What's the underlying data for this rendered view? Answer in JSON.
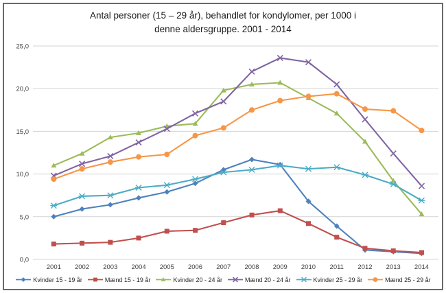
{
  "chart_data": {
    "type": "line",
    "title": "Antal personer (15 – 29 år), behandlet for kondylomer, per 1000 i denne aldersgruppe. 2001 - 2014",
    "title_lines": [
      "Antal personer (15 – 29 år), behandlet for kondylomer, per 1000 i",
      "denne aldersgruppe. 2001 - 2014"
    ],
    "xlabel": "",
    "ylabel": "",
    "x": [
      "2001",
      "2002",
      "2003",
      "2004",
      "2005",
      "2006",
      "2007",
      "2008",
      "2009",
      "2010",
      "2011",
      "2012",
      "2013",
      "2014"
    ],
    "y_ticks": [
      "0,0",
      "5,0",
      "10,0",
      "15,0",
      "20,0",
      "25,0"
    ],
    "ylim": [
      0,
      25
    ],
    "grid": true,
    "legend_position": "bottom",
    "series": [
      {
        "name": "Kvinder 15 - 19 år",
        "marker": "diamond",
        "color": "#4F81BD",
        "values": [
          5.0,
          5.9,
          6.4,
          7.2,
          7.9,
          8.9,
          10.5,
          11.7,
          11.1,
          6.8,
          3.9,
          1.1,
          0.9,
          0.7
        ]
      },
      {
        "name": "Mænd 15 - 19 år",
        "marker": "square",
        "color": "#C0504D",
        "values": [
          1.8,
          1.9,
          2.0,
          2.5,
          3.3,
          3.4,
          4.3,
          5.2,
          5.7,
          4.2,
          2.6,
          1.3,
          1.0,
          0.8
        ]
      },
      {
        "name": "Kvinder 20 - 24 år",
        "marker": "triangle",
        "color": "#9BBB59",
        "values": [
          11.0,
          12.4,
          14.3,
          14.8,
          15.6,
          15.9,
          19.8,
          20.5,
          20.7,
          18.9,
          17.1,
          13.8,
          9.2,
          5.3
        ]
      },
      {
        "name": "Mænd 20 - 24 år",
        "marker": "x",
        "color": "#8064A2",
        "values": [
          9.8,
          11.2,
          12.1,
          13.7,
          15.3,
          17.1,
          18.5,
          22.0,
          23.6,
          23.1,
          20.5,
          16.4,
          12.4,
          8.6
        ]
      },
      {
        "name": "Kvinder 25 - 29 år",
        "marker": "asterisk",
        "color": "#4BACC6",
        "values": [
          6.3,
          7.4,
          7.5,
          8.4,
          8.7,
          9.4,
          10.2,
          10.5,
          11.0,
          10.6,
          10.8,
          9.9,
          8.8,
          6.9
        ]
      },
      {
        "name": "Mænd 25 - 29 år",
        "marker": "circle",
        "color": "#F79646",
        "values": [
          9.4,
          10.6,
          11.4,
          12.0,
          12.3,
          14.5,
          15.4,
          17.5,
          18.6,
          19.1,
          19.4,
          17.6,
          17.4,
          15.1
        ]
      }
    ]
  },
  "colors": {
    "grid": "#d3d3d3",
    "axis_text": "#404040",
    "frame_border": "#6a6a6a",
    "title_text": "#1a1a1a"
  }
}
